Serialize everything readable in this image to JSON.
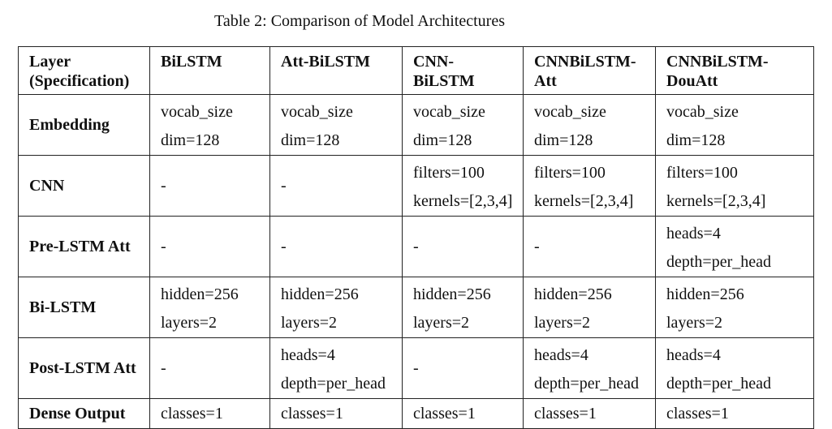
{
  "caption": "Table 2: Comparison of Model Architectures",
  "table": {
    "headers": [
      [
        "Layer",
        "(Specification)"
      ],
      [
        "BiLSTM"
      ],
      [
        "Att-BiLSTM"
      ],
      [
        "CNN-",
        "BiLSTM"
      ],
      [
        "CNNBiLSTM-",
        "Att"
      ],
      [
        "CNNBiLSTM-",
        "DouAtt"
      ]
    ],
    "rows": [
      {
        "label": "Embedding",
        "cells": [
          [
            "vocab_size",
            "dim=128"
          ],
          [
            "vocab_size",
            "dim=128"
          ],
          [
            "vocab_size",
            "dim=128"
          ],
          [
            "vocab_size",
            "dim=128"
          ],
          [
            "vocab_size",
            "dim=128"
          ]
        ]
      },
      {
        "label": "CNN",
        "cells": [
          [
            "-"
          ],
          [
            "-"
          ],
          [
            "filters=100",
            "kernels=[2,3,4]"
          ],
          [
            "filters=100",
            "kernels=[2,3,4]"
          ],
          [
            "filters=100",
            "kernels=[2,3,4]"
          ]
        ]
      },
      {
        "label": "Pre-LSTM Att",
        "cells": [
          [
            "-"
          ],
          [
            "-"
          ],
          [
            "-"
          ],
          [
            "-"
          ],
          [
            "heads=4",
            "depth=per_head"
          ]
        ]
      },
      {
        "label": "Bi-LSTM",
        "cells": [
          [
            "hidden=256",
            "layers=2"
          ],
          [
            "hidden=256",
            "layers=2"
          ],
          [
            "hidden=256",
            "layers=2"
          ],
          [
            "hidden=256",
            "layers=2"
          ],
          [
            "hidden=256",
            "layers=2"
          ]
        ]
      },
      {
        "label": "Post-LSTM Att",
        "cells": [
          [
            "-"
          ],
          [
            "heads=4",
            "depth=per_head"
          ],
          [
            "-"
          ],
          [
            "heads=4",
            "depth=per_head"
          ],
          [
            "heads=4",
            "depth=per_head"
          ]
        ]
      },
      {
        "label": "Dense Output",
        "cells": [
          [
            "classes=1"
          ],
          [
            "classes=1"
          ],
          [
            "classes=1"
          ],
          [
            "classes=1"
          ],
          [
            "classes=1"
          ]
        ]
      }
    ]
  }
}
